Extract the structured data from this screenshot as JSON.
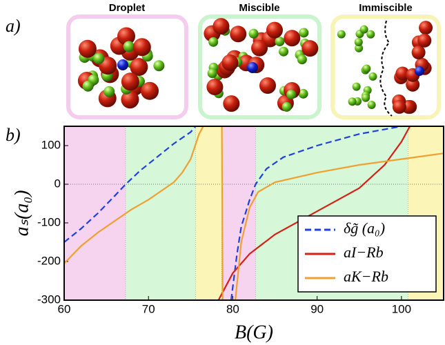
{
  "panel_a": {
    "label": "a)",
    "titles": [
      "Droplet",
      "Miscible",
      "Immiscible"
    ]
  },
  "chart_data": {
    "type": "line",
    "label": "b)",
    "x_label": "B(G)",
    "y_label": "aₛ(a₀)",
    "xlim": [
      60,
      105
    ],
    "ylim": [
      -300,
      150
    ],
    "xticks": [
      60,
      70,
      80,
      90,
      100
    ],
    "yticks": [
      -300,
      -200,
      -100,
      0,
      100
    ],
    "reference_line": 0,
    "regions": [
      {
        "from": 60,
        "to": 67.3,
        "color": "#f6d3ef"
      },
      {
        "from": 67.3,
        "to": 75.6,
        "color": "#d6f7d8"
      },
      {
        "from": 75.6,
        "to": 78.7,
        "color": "#fbf6b8"
      },
      {
        "from": 78.7,
        "to": 82.7,
        "color": "#f6d3ef"
      },
      {
        "from": 82.7,
        "to": 100.8,
        "color": "#d6f7d8"
      },
      {
        "from": 100.8,
        "to": 105,
        "color": "#fbf6b8"
      }
    ],
    "legend": "lower right",
    "series": [
      {
        "name": "δg̃ (a₀)",
        "color": "#1f3fe0",
        "dashed": true,
        "x": [
          60,
          62,
          64,
          66,
          67.3,
          69,
          71,
          73,
          75,
          75.6,
          76,
          79.8,
          80.5,
          81,
          82,
          82.7,
          84,
          86,
          90,
          95,
          100
        ],
        "values": [
          -150,
          -115,
          -75,
          -30,
          0,
          35,
          70,
          105,
          135,
          150,
          null,
          -300,
          -180,
          -110,
          -40,
          0,
          40,
          70,
          100,
          130,
          150
        ]
      },
      {
        "name": "aI−Rb",
        "color": "#d42015",
        "dashed": false,
        "x": [
          78.3,
          80,
          82,
          85,
          90,
          95,
          98,
          100,
          101
        ],
        "values": [
          -300,
          -230,
          -180,
          -130,
          -70,
          -10,
          50,
          110,
          150
        ]
      },
      {
        "name": "aK−Rb",
        "color": "#f0a030",
        "dashed": false,
        "x": [
          60,
          62,
          64,
          66,
          68,
          70,
          72,
          73,
          74,
          75,
          76,
          76.5,
          77,
          78.7,
          78.8,
          79,
          80.3,
          81,
          82,
          83,
          85,
          90,
          95,
          100,
          105
        ],
        "values": [
          -205,
          -160,
          -125,
          -95,
          -65,
          -40,
          -10,
          5,
          30,
          65,
          130,
          150,
          null,
          150,
          -300,
          null,
          -300,
          -150,
          -60,
          -20,
          5,
          30,
          50,
          65,
          80
        ]
      }
    ]
  }
}
